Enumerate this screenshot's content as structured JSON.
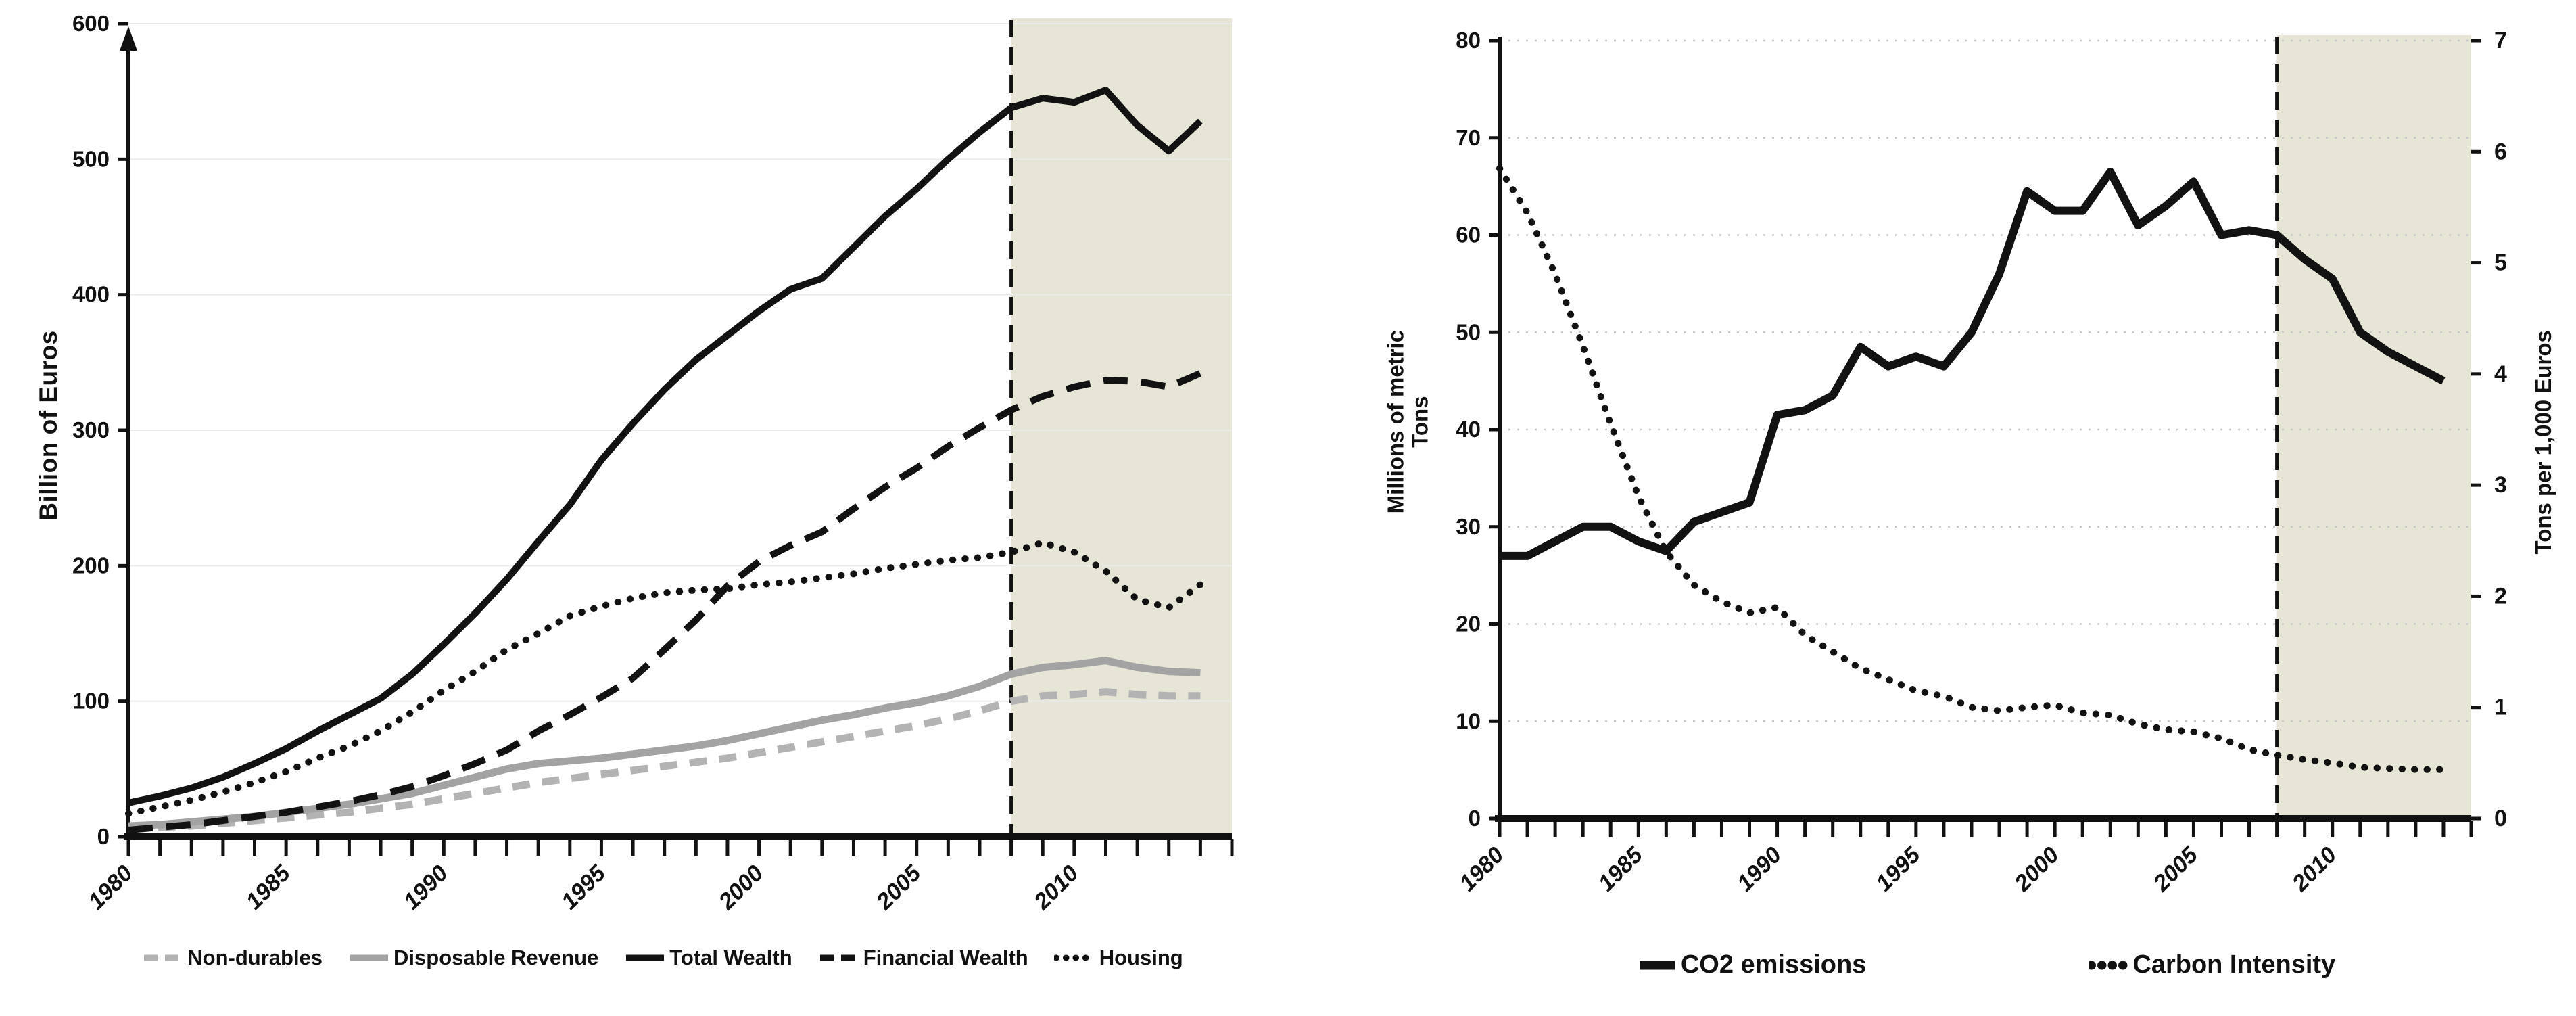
{
  "page": {
    "background": "#ffffff"
  },
  "colors": {
    "black": "#121212",
    "gray_solid": "#a3a3a3",
    "gray_dashed": "#b3b3b3",
    "shade": "#e7e5d6",
    "grid_left": "#ebebeb",
    "grid_right": "#c8c8c8",
    "axis": "#111111"
  },
  "chart_data": [
    {
      "id": "household-wealth",
      "type": "line",
      "title": "",
      "ylabel": "Billion of Euros",
      "xlabel": "",
      "x_start": 1980,
      "x_axis_end": 2015,
      "x_tick_step": 1,
      "x_label_years": [
        1980,
        1985,
        1990,
        1995,
        2000,
        2005,
        2010
      ],
      "ylim": [
        0,
        600
      ],
      "yticks": [
        0,
        100,
        200,
        300,
        400,
        500,
        600
      ],
      "grid": true,
      "forecast_shade_start": 2008,
      "legend_position": "bottom",
      "years": [
        1980,
        1981,
        1982,
        1983,
        1984,
        1985,
        1986,
        1987,
        1988,
        1989,
        1990,
        1991,
        1992,
        1993,
        1994,
        1995,
        1996,
        1997,
        1998,
        1999,
        2000,
        2001,
        2002,
        2003,
        2004,
        2005,
        2006,
        2007,
        2008,
        2009,
        2010,
        2011,
        2012,
        2013,
        2014
      ],
      "series": [
        {
          "name": "Non-durables",
          "color": "gray_dashed",
          "style": "dashed",
          "values": [
            6,
            7,
            8,
            10,
            12,
            14,
            16,
            18,
            21,
            24,
            28,
            32,
            36,
            40,
            43,
            46,
            49,
            52,
            55,
            58,
            62,
            66,
            70,
            74,
            78,
            82,
            87,
            93,
            100,
            104,
            105,
            107,
            105,
            104,
            104
          ]
        },
        {
          "name": "Disposable Revenue",
          "color": "gray_solid",
          "style": "solid",
          "values": [
            8,
            9,
            11,
            13,
            15,
            18,
            21,
            24,
            28,
            32,
            38,
            44,
            50,
            54,
            56,
            58,
            61,
            64,
            67,
            71,
            76,
            81,
            86,
            90,
            95,
            99,
            104,
            111,
            120,
            125,
            127,
            130,
            125,
            122,
            121
          ]
        },
        {
          "name": "Total Wealth",
          "color": "black",
          "style": "solid",
          "values": [
            25,
            30,
            36,
            44,
            54,
            65,
            78,
            90,
            102,
            120,
            142,
            165,
            190,
            218,
            245,
            278,
            305,
            330,
            352,
            370,
            388,
            404,
            412,
            435,
            458,
            478,
            500,
            520,
            538,
            545,
            542,
            551,
            525,
            506,
            528
          ]
        },
        {
          "name": "Financial Wealth",
          "color": "black",
          "style": "dashed",
          "values": [
            5,
            7,
            9,
            12,
            15,
            18,
            22,
            26,
            31,
            37,
            45,
            54,
            64,
            78,
            90,
            103,
            117,
            138,
            160,
            185,
            203,
            215,
            225,
            242,
            258,
            272,
            288,
            302,
            315,
            325,
            332,
            337,
            336,
            332,
            342
          ]
        },
        {
          "name": "Housing",
          "color": "black",
          "style": "dotted",
          "values": [
            17,
            22,
            27,
            33,
            40,
            48,
            58,
            67,
            78,
            92,
            108,
            122,
            138,
            150,
            163,
            170,
            176,
            180,
            182,
            183,
            186,
            188,
            191,
            194,
            198,
            201,
            204,
            206,
            210,
            217,
            210,
            196,
            175,
            169,
            186
          ]
        }
      ]
    },
    {
      "id": "co2-intensity",
      "type": "line",
      "title": "",
      "ylabel_left": "Millions of metric Tons",
      "ylabel_right": "Tons per 1,000 Euros",
      "xlabel": "",
      "x_start": 1980,
      "x_axis_end": 2015,
      "x_tick_step": 1,
      "x_label_years": [
        1980,
        1985,
        1990,
        1995,
        2000,
        2005,
        2010
      ],
      "ylim_left": [
        0,
        80
      ],
      "yticks_left": [
        0,
        10,
        20,
        30,
        40,
        50,
        60,
        70,
        80
      ],
      "ylim_right": [
        0,
        7
      ],
      "yticks_right": [
        0,
        1,
        2,
        3,
        4,
        5,
        6,
        7
      ],
      "grid": true,
      "forecast_shade_start": 2008,
      "legend_position": "bottom",
      "years": [
        1980,
        1981,
        1982,
        1983,
        1984,
        1985,
        1986,
        1987,
        1988,
        1989,
        1990,
        1991,
        1992,
        1993,
        1994,
        1995,
        1996,
        1997,
        1998,
        1999,
        2000,
        2001,
        2002,
        2003,
        2004,
        2005,
        2006,
        2007,
        2008,
        2009,
        2010,
        2011,
        2012,
        2013,
        2014
      ],
      "series": [
        {
          "name": "CO2 emissions",
          "color": "black",
          "style": "solid",
          "axis": "left",
          "values": [
            27,
            27,
            28.5,
            30,
            30,
            28.5,
            27.5,
            30.5,
            31.5,
            32.5,
            41.5,
            42,
            43.5,
            48.5,
            46.5,
            47.5,
            46.5,
            50,
            56,
            64.5,
            62.5,
            62.5,
            66.5,
            61,
            63,
            65.5,
            60,
            60.5,
            60,
            57.5,
            55.5,
            50,
            48,
            46.5,
            45
          ]
        },
        {
          "name": "Carbon Intensity",
          "color": "black",
          "style": "dotted",
          "axis": "right",
          "values": [
            5.85,
            5.45,
            4.9,
            4.25,
            3.55,
            2.9,
            2.4,
            2.1,
            1.95,
            1.85,
            1.9,
            1.65,
            1.5,
            1.35,
            1.25,
            1.15,
            1.1,
            1.0,
            0.97,
            1.0,
            1.02,
            0.95,
            0.93,
            0.85,
            0.8,
            0.78,
            0.72,
            0.62,
            0.57,
            0.53,
            0.5,
            0.46,
            0.45,
            0.44,
            0.44
          ]
        }
      ]
    }
  ]
}
